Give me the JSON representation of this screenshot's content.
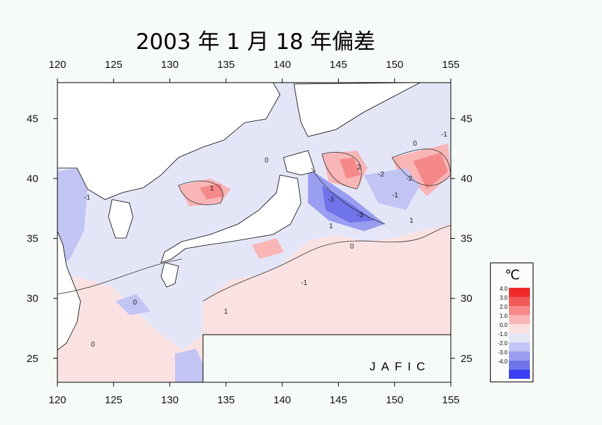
{
  "title": "2003 年  1 月 18 年偏差",
  "map": {
    "lon_ticks": [
      "120",
      "125",
      "130",
      "135",
      "140",
      "145",
      "150",
      "155"
    ],
    "lat_ticks": [
      "45",
      "40",
      "35",
      "30",
      "25"
    ],
    "lon_range": [
      120,
      155
    ],
    "lat_range": [
      23,
      48
    ],
    "contour_labels": [
      "1",
      "0",
      "-1",
      "-2",
      "-3",
      "1",
      "0",
      "-1",
      "2",
      "-2",
      "-3",
      "1",
      "0",
      "-1",
      "1",
      "0",
      "0",
      "-1"
    ]
  },
  "legend": {
    "unit": "℃",
    "entries": [
      {
        "label": "4.0",
        "color": "#ee2a2a"
      },
      {
        "label": "3.0",
        "color": "#f25a5a"
      },
      {
        "label": "2.0",
        "color": "#f58888"
      },
      {
        "label": "1.0",
        "color": "#f8b6b6"
      },
      {
        "label": "0.0",
        "color": "#fbe2e2"
      },
      {
        "label": "-1.0",
        "color": "#e4e6f8"
      },
      {
        "label": "-2.0",
        "color": "#c2c5f4"
      },
      {
        "label": "-3.0",
        "color": "#9a9ef0"
      },
      {
        "label": "-4.0",
        "color": "#6f74ea"
      },
      {
        "label": "",
        "color": "#3a3ff0"
      }
    ]
  },
  "credit": "JAFIC",
  "colors": {
    "land": "#ffffff",
    "background": "#f7fbf7",
    "warm": "#fbe2e2",
    "cool": "#e4e6f8"
  }
}
